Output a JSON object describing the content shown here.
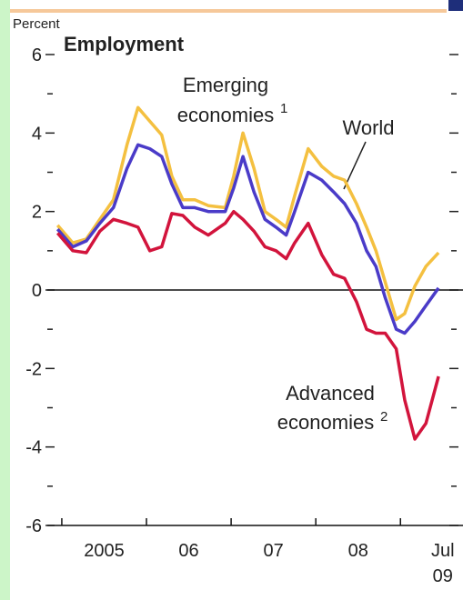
{
  "chart_data": {
    "type": "line",
    "y_axis_label": "Percent",
    "title": "Employment",
    "x": [
      2004.95,
      2005.13,
      2005.29,
      2005.45,
      2005.61,
      2005.77,
      2005.9,
      2006.04,
      2006.18,
      2006.3,
      2006.43,
      2006.57,
      2006.73,
      2006.93,
      2007.03,
      2007.14,
      2007.27,
      2007.4,
      2007.53,
      2007.65,
      2007.75,
      2007.91,
      2008.07,
      2008.21,
      2008.34,
      2008.48,
      2008.6,
      2008.71,
      2008.82,
      2008.95,
      2009.05,
      2009.17,
      2009.3,
      2009.45
    ],
    "series": [
      {
        "name": "Emerging economies",
        "color": "#f4c040",
        "values": [
          1.65,
          1.2,
          1.3,
          1.8,
          2.3,
          3.7,
          4.65,
          4.3,
          3.95,
          2.9,
          2.3,
          2.3,
          2.15,
          2.1,
          2.9,
          4.0,
          3.1,
          2.0,
          1.8,
          1.6,
          2.4,
          3.6,
          3.15,
          2.9,
          2.8,
          2.2,
          1.6,
          1.0,
          0.2,
          -0.75,
          -0.6,
          0.1,
          0.6,
          0.95
        ]
      },
      {
        "name": "World",
        "color": "#4a3bc8",
        "values": [
          1.55,
          1.1,
          1.25,
          1.7,
          2.1,
          3.1,
          3.7,
          3.6,
          3.4,
          2.7,
          2.1,
          2.1,
          2.0,
          2.0,
          2.6,
          3.4,
          2.5,
          1.8,
          1.6,
          1.4,
          2.0,
          3.0,
          2.8,
          2.5,
          2.2,
          1.7,
          1.0,
          0.6,
          -0.2,
          -1.0,
          -1.1,
          -0.8,
          -0.4,
          0.05
        ]
      },
      {
        "name": "Advanced economies",
        "color": "#d2143c",
        "values": [
          1.45,
          1.0,
          0.95,
          1.5,
          1.8,
          1.7,
          1.6,
          1.0,
          1.1,
          1.95,
          1.9,
          1.6,
          1.4,
          1.7,
          2.0,
          1.8,
          1.5,
          1.1,
          1.0,
          0.8,
          1.2,
          1.7,
          0.9,
          0.4,
          0.3,
          -0.3,
          -1.0,
          -1.1,
          -1.1,
          -1.5,
          -2.8,
          -3.8,
          -3.4,
          -2.2
        ]
      }
    ],
    "annotations": {
      "emerging_line1": "Emerging",
      "emerging_line2": "economies",
      "emerging_note": "1",
      "world": "World",
      "advanced_line1": "Advanced",
      "advanced_line2": "economies",
      "advanced_note": "2"
    },
    "xlim": [
      2004.947,
      2009.47
    ],
    "xticks": [
      {
        "value": 2005.5,
        "label": "2005"
      },
      {
        "value": 2006.5,
        "label": "06"
      },
      {
        "value": 2007.5,
        "label": "07"
      },
      {
        "value": 2008.5,
        "label": "08"
      },
      {
        "value": 2009.5,
        "label": "Jul"
      }
    ],
    "xtick_sub": "09",
    "ylim": [
      -6,
      6
    ],
    "yticks": [
      -6,
      -4,
      -2,
      0,
      2,
      4,
      6
    ]
  }
}
